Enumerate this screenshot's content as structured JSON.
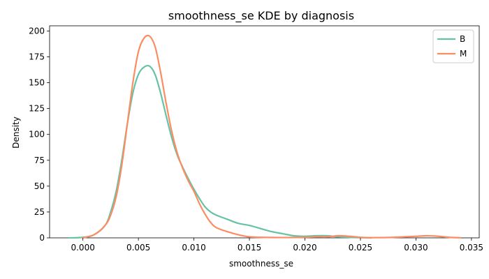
{
  "chart_data": {
    "type": "line",
    "title": "smoothness_se KDE by diagnosis",
    "xlabel": "smoothness_se",
    "ylabel": "Density",
    "xlim": [
      -0.003,
      0.0357
    ],
    "ylim": [
      0,
      205
    ],
    "xticks": [
      0.0,
      0.005,
      0.01,
      0.015,
      0.02,
      0.025,
      0.03,
      0.035
    ],
    "xtick_labels": [
      "0.000",
      "0.005",
      "0.010",
      "0.015",
      "0.020",
      "0.025",
      "0.030",
      "0.035"
    ],
    "yticks": [
      0,
      25,
      50,
      75,
      100,
      125,
      150,
      175,
      200
    ],
    "ytick_labels": [
      "0",
      "25",
      "50",
      "75",
      "100",
      "125",
      "150",
      "175",
      "200"
    ],
    "grid": false,
    "legend_position": "top-right",
    "series": [
      {
        "name": "B",
        "color": "#66c2a5",
        "points": [
          [
            -0.0012,
            0
          ],
          [
            0.0,
            0.5
          ],
          [
            0.001,
            3
          ],
          [
            0.002,
            12
          ],
          [
            0.0025,
            25
          ],
          [
            0.003,
            45
          ],
          [
            0.0035,
            75
          ],
          [
            0.004,
            110
          ],
          [
            0.0045,
            140
          ],
          [
            0.005,
            158
          ],
          [
            0.0055,
            165
          ],
          [
            0.006,
            166
          ],
          [
            0.0065,
            158
          ],
          [
            0.007,
            140
          ],
          [
            0.0075,
            118
          ],
          [
            0.008,
            97
          ],
          [
            0.0085,
            80
          ],
          [
            0.009,
            68
          ],
          [
            0.0095,
            57
          ],
          [
            0.01,
            47
          ],
          [
            0.0105,
            38
          ],
          [
            0.011,
            30
          ],
          [
            0.0115,
            25
          ],
          [
            0.012,
            22
          ],
          [
            0.013,
            18
          ],
          [
            0.014,
            14
          ],
          [
            0.015,
            12
          ],
          [
            0.016,
            9
          ],
          [
            0.017,
            6
          ],
          [
            0.018,
            4
          ],
          [
            0.019,
            2
          ],
          [
            0.02,
            1.5
          ],
          [
            0.021,
            2
          ],
          [
            0.022,
            2
          ],
          [
            0.023,
            1
          ],
          [
            0.024,
            0.5
          ],
          [
            0.025,
            0.2
          ],
          [
            0.026,
            0
          ]
        ]
      },
      {
        "name": "M",
        "color": "#fc8d62",
        "points": [
          [
            0.0,
            0
          ],
          [
            0.001,
            3
          ],
          [
            0.002,
            12
          ],
          [
            0.0025,
            22
          ],
          [
            0.003,
            40
          ],
          [
            0.0035,
            70
          ],
          [
            0.004,
            110
          ],
          [
            0.0045,
            150
          ],
          [
            0.005,
            180
          ],
          [
            0.0055,
            193
          ],
          [
            0.006,
            195
          ],
          [
            0.0065,
            185
          ],
          [
            0.007,
            160
          ],
          [
            0.0075,
            130
          ],
          [
            0.008,
            103
          ],
          [
            0.0085,
            82
          ],
          [
            0.009,
            67
          ],
          [
            0.0095,
            55
          ],
          [
            0.01,
            45
          ],
          [
            0.0105,
            33
          ],
          [
            0.011,
            23
          ],
          [
            0.0115,
            15
          ],
          [
            0.012,
            10
          ],
          [
            0.013,
            6
          ],
          [
            0.014,
            3
          ],
          [
            0.015,
            1
          ],
          [
            0.016,
            0.5
          ],
          [
            0.018,
            0.3
          ],
          [
            0.02,
            0.5
          ],
          [
            0.021,
            1
          ],
          [
            0.022,
            1
          ],
          [
            0.023,
            2
          ],
          [
            0.024,
            1.5
          ],
          [
            0.025,
            0.5
          ],
          [
            0.026,
            0.2
          ],
          [
            0.028,
            0.5
          ],
          [
            0.029,
            1
          ],
          [
            0.03,
            1.5
          ],
          [
            0.031,
            2
          ],
          [
            0.032,
            1.5
          ],
          [
            0.033,
            0.5
          ],
          [
            0.034,
            0.1
          ]
        ]
      }
    ]
  }
}
